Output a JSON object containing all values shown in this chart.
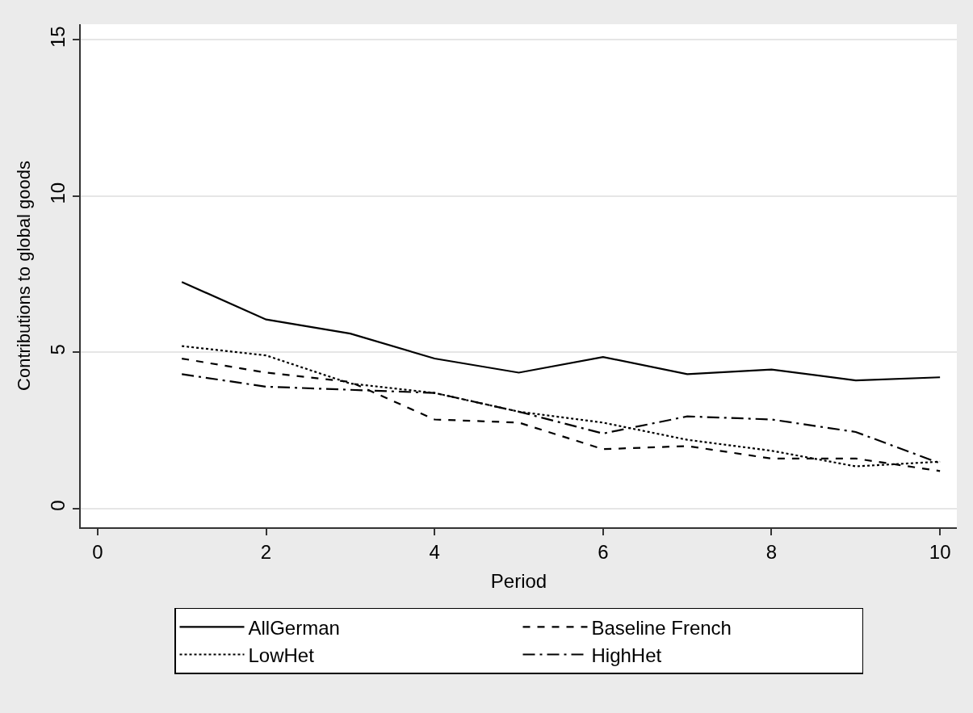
{
  "chart_data": {
    "type": "line",
    "ylabel": "Contributions to global goods",
    "xlabel": "Period",
    "x": [
      1,
      2,
      3,
      4,
      5,
      6,
      7,
      8,
      9,
      10
    ],
    "series": [
      {
        "name": "AllGerman",
        "color": "#000000",
        "line_style": "solid",
        "values": [
          7.25,
          6.05,
          5.6,
          4.8,
          4.35,
          4.85,
          4.3,
          4.45,
          4.1,
          4.2
        ]
      },
      {
        "name": "Baseline French",
        "color": "#000000",
        "line_style": "dashed",
        "values": [
          4.8,
          4.35,
          4.05,
          2.85,
          2.75,
          1.9,
          2.0,
          1.6,
          1.6,
          1.2
        ]
      },
      {
        "name": "LowHet",
        "color": "#000000",
        "line_style": "dotted",
        "values": [
          5.2,
          4.9,
          4.0,
          3.7,
          3.1,
          2.75,
          2.2,
          1.85,
          1.35,
          1.5
        ]
      },
      {
        "name": "HighHet",
        "color": "#000000",
        "line_style": "dashdot",
        "values": [
          4.3,
          3.9,
          3.8,
          3.7,
          3.1,
          2.4,
          2.95,
          2.85,
          2.45,
          1.45
        ]
      }
    ],
    "xlim": [
      -0.2,
      10.2
    ],
    "ylim": [
      -0.6,
      15.5
    ],
    "xticks": [
      0,
      2,
      4,
      6,
      8,
      10
    ],
    "yticks": [
      0,
      5,
      10,
      15
    ],
    "grid": "y",
    "legend": "bottom",
    "marker": "none"
  }
}
